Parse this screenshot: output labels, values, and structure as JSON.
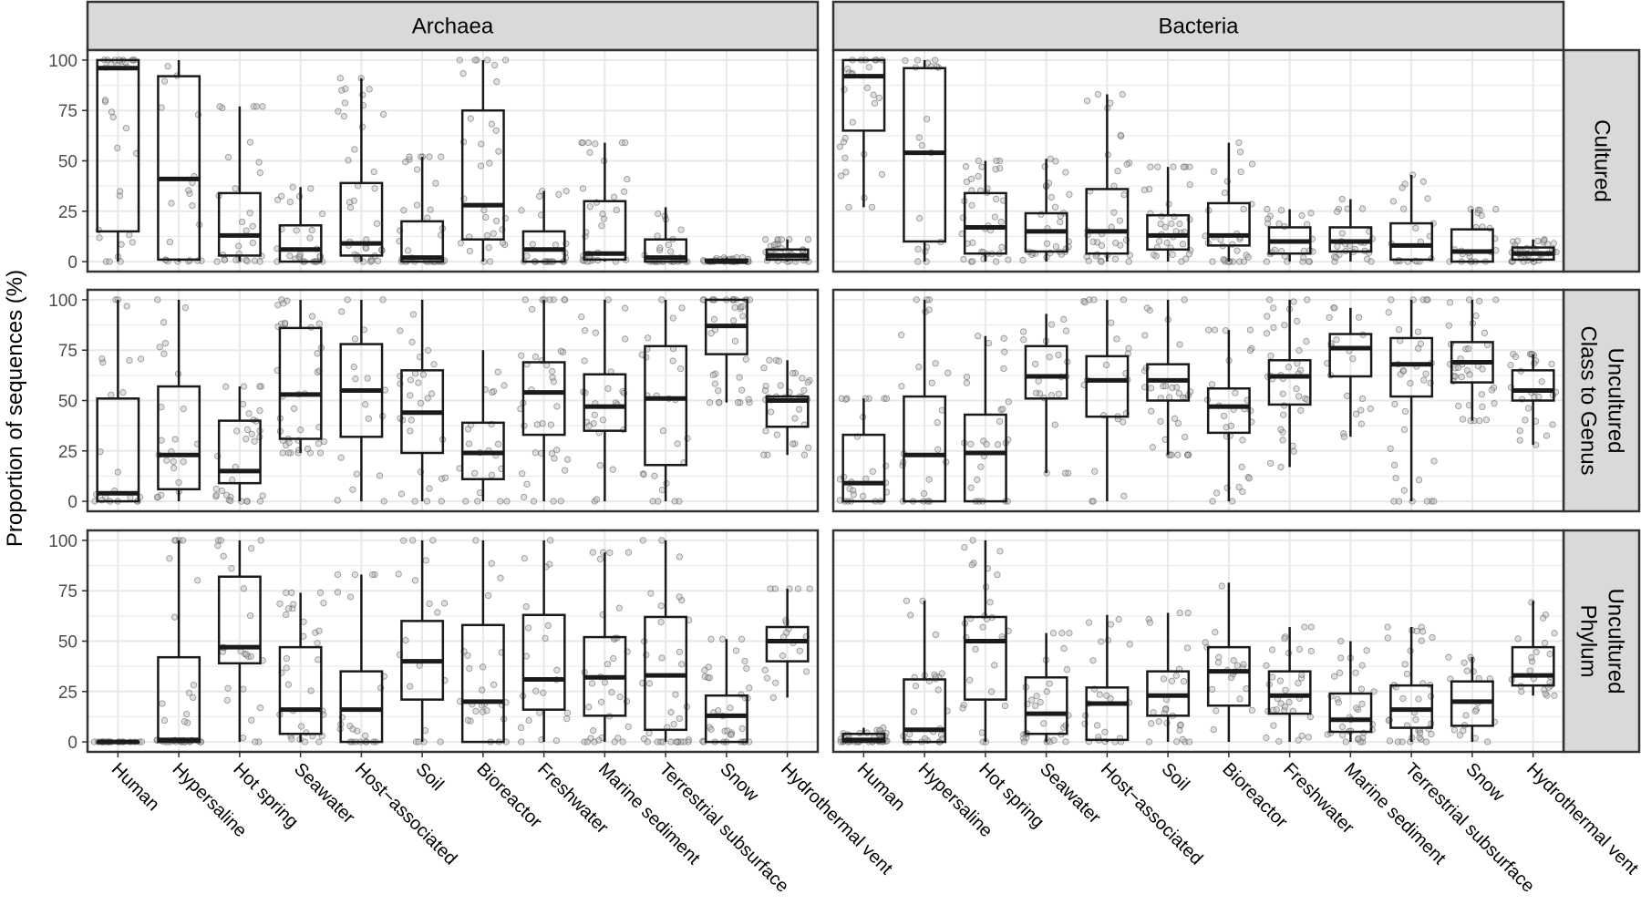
{
  "chart_data": {
    "type": "boxplot",
    "ylabel": "Proportion of sequences (%)",
    "ylim": [
      0,
      100
    ],
    "yticks": [
      0,
      25,
      50,
      75,
      100
    ],
    "grid": true,
    "facet_columns": [
      "Archaea",
      "Bacteria"
    ],
    "facet_rows": [
      "Cultured",
      "Uncultured\nClass to Genus",
      "Uncultured\nPhylum"
    ],
    "categories": [
      "Human",
      "Hypersaline",
      "Hot spring",
      "Seawater",
      "Host−associated",
      "Soil",
      "Bioreactor",
      "Freshwater",
      "Marine sediment",
      "Terrestrial subsurface",
      "Snow",
      "Hydrothermal vent"
    ],
    "panels": [
      {
        "column": "Archaea",
        "row": "Cultured",
        "boxes": [
          {
            "lo": 0,
            "q1": 15,
            "med": 96,
            "q3": 100,
            "hi": 100
          },
          {
            "lo": 0,
            "q1": 1,
            "med": 41,
            "q3": 92,
            "hi": 100
          },
          {
            "lo": 0,
            "q1": 3,
            "med": 13,
            "q3": 34,
            "hi": 77
          },
          {
            "lo": 0,
            "q1": 0,
            "med": 6,
            "q3": 18,
            "hi": 37
          },
          {
            "lo": 0,
            "q1": 3,
            "med": 9,
            "q3": 39,
            "hi": 91
          },
          {
            "lo": 0,
            "q1": 0,
            "med": 2,
            "q3": 20,
            "hi": 52
          },
          {
            "lo": 0,
            "q1": 11,
            "med": 28,
            "q3": 75,
            "hi": 100
          },
          {
            "lo": 0,
            "q1": 0,
            "med": 6,
            "q3": 15,
            "hi": 35
          },
          {
            "lo": 0,
            "q1": 1,
            "med": 4,
            "q3": 30,
            "hi": 59
          },
          {
            "lo": 0,
            "q1": 0,
            "med": 2,
            "q3": 11,
            "hi": 27
          },
          {
            "lo": 0,
            "q1": 0,
            "med": 0,
            "q3": 1,
            "hi": 2
          },
          {
            "lo": 0,
            "q1": 1,
            "med": 3,
            "q3": 6,
            "hi": 11
          }
        ]
      },
      {
        "column": "Bacteria",
        "row": "Cultured",
        "boxes": [
          {
            "lo": 27,
            "q1": 65,
            "med": 92,
            "q3": 100,
            "hi": 100
          },
          {
            "lo": 0,
            "q1": 10,
            "med": 54,
            "q3": 96,
            "hi": 100
          },
          {
            "lo": 0,
            "q1": 4,
            "med": 17,
            "q3": 34,
            "hi": 50
          },
          {
            "lo": 0,
            "q1": 5,
            "med": 15,
            "q3": 24,
            "hi": 51
          },
          {
            "lo": 0,
            "q1": 4,
            "med": 15,
            "q3": 36,
            "hi": 83
          },
          {
            "lo": 0,
            "q1": 6,
            "med": 13,
            "q3": 23,
            "hi": 47
          },
          {
            "lo": 0,
            "q1": 8,
            "med": 13,
            "q3": 29,
            "hi": 59
          },
          {
            "lo": 0,
            "q1": 4,
            "med": 10,
            "q3": 17,
            "hi": 26
          },
          {
            "lo": 0,
            "q1": 5,
            "med": 10,
            "q3": 17,
            "hi": 31
          },
          {
            "lo": 0,
            "q1": 1,
            "med": 8,
            "q3": 19,
            "hi": 43
          },
          {
            "lo": 0,
            "q1": 0,
            "med": 5,
            "q3": 16,
            "hi": 26
          },
          {
            "lo": 0,
            "q1": 1,
            "med": 4,
            "q3": 7,
            "hi": 11
          }
        ]
      },
      {
        "column": "Archaea",
        "row": "Uncultured\nClass to Genus",
        "boxes": [
          {
            "lo": 0,
            "q1": 0,
            "med": 4,
            "q3": 51,
            "hi": 100
          },
          {
            "lo": 0,
            "q1": 6,
            "med": 23,
            "q3": 57,
            "hi": 100
          },
          {
            "lo": 0,
            "q1": 9,
            "med": 15,
            "q3": 40,
            "hi": 57
          },
          {
            "lo": 24,
            "q1": 31,
            "med": 53,
            "q3": 86,
            "hi": 100
          },
          {
            "lo": 0,
            "q1": 32,
            "med": 55,
            "q3": 78,
            "hi": 100
          },
          {
            "lo": 0,
            "q1": 24,
            "med": 44,
            "q3": 65,
            "hi": 100
          },
          {
            "lo": 0,
            "q1": 11,
            "med": 24,
            "q3": 39,
            "hi": 75
          },
          {
            "lo": 0,
            "q1": 33,
            "med": 54,
            "q3": 69,
            "hi": 100
          },
          {
            "lo": 0,
            "q1": 35,
            "med": 47,
            "q3": 63,
            "hi": 100
          },
          {
            "lo": 0,
            "q1": 18,
            "med": 51,
            "q3": 77,
            "hi": 100
          },
          {
            "lo": 49,
            "q1": 73,
            "med": 87,
            "q3": 100,
            "hi": 100
          },
          {
            "lo": 23,
            "q1": 37,
            "med": 50,
            "q3": 52,
            "hi": 70
          }
        ]
      },
      {
        "column": "Bacteria",
        "row": "Uncultured\nClass to Genus",
        "boxes": [
          {
            "lo": 0,
            "q1": 0,
            "med": 9,
            "q3": 33,
            "hi": 51
          },
          {
            "lo": 0,
            "q1": 0,
            "med": 23,
            "q3": 52,
            "hi": 100
          },
          {
            "lo": 0,
            "q1": 0,
            "med": 24,
            "q3": 43,
            "hi": 82
          },
          {
            "lo": 14,
            "q1": 51,
            "med": 62,
            "q3": 77,
            "hi": 93
          },
          {
            "lo": 0,
            "q1": 42,
            "med": 60,
            "q3": 72,
            "hi": 100
          },
          {
            "lo": 23,
            "q1": 50,
            "med": 60,
            "q3": 68,
            "hi": 100
          },
          {
            "lo": 0,
            "q1": 34,
            "med": 47,
            "q3": 56,
            "hi": 85
          },
          {
            "lo": 17,
            "q1": 48,
            "med": 62,
            "q3": 70,
            "hi": 100
          },
          {
            "lo": 32,
            "q1": 62,
            "med": 76,
            "q3": 83,
            "hi": 96
          },
          {
            "lo": 0,
            "q1": 52,
            "med": 68,
            "q3": 81,
            "hi": 100
          },
          {
            "lo": 40,
            "q1": 59,
            "med": 69,
            "q3": 79,
            "hi": 100
          },
          {
            "lo": 28,
            "q1": 50,
            "med": 55,
            "q3": 65,
            "hi": 73
          }
        ]
      },
      {
        "column": "Archaea",
        "row": "Uncultured\nPhylum",
        "boxes": [
          {
            "lo": 0,
            "q1": 0,
            "med": 0,
            "q3": 0,
            "hi": 0
          },
          {
            "lo": 0,
            "q1": 0,
            "med": 1,
            "q3": 42,
            "hi": 100
          },
          {
            "lo": 0,
            "q1": 39,
            "med": 47,
            "q3": 82,
            "hi": 100
          },
          {
            "lo": 0,
            "q1": 4,
            "med": 16,
            "q3": 47,
            "hi": 74
          },
          {
            "lo": 0,
            "q1": 0,
            "med": 16,
            "q3": 35,
            "hi": 83
          },
          {
            "lo": 0,
            "q1": 21,
            "med": 40,
            "q3": 60,
            "hi": 100
          },
          {
            "lo": 0,
            "q1": 0,
            "med": 20,
            "q3": 58,
            "hi": 100
          },
          {
            "lo": 0,
            "q1": 16,
            "med": 31,
            "q3": 63,
            "hi": 100
          },
          {
            "lo": 0,
            "q1": 13,
            "med": 32,
            "q3": 52,
            "hi": 94
          },
          {
            "lo": 0,
            "q1": 6,
            "med": 33,
            "q3": 62,
            "hi": 100
          },
          {
            "lo": 0,
            "q1": 0,
            "med": 13,
            "q3": 23,
            "hi": 51
          },
          {
            "lo": 22,
            "q1": 40,
            "med": 50,
            "q3": 57,
            "hi": 76
          }
        ]
      },
      {
        "column": "Bacteria",
        "row": "Uncultured\nPhylum",
        "boxes": [
          {
            "lo": 0,
            "q1": 0,
            "med": 1,
            "q3": 4,
            "hi": 7
          },
          {
            "lo": 0,
            "q1": 0,
            "med": 6,
            "q3": 31,
            "hi": 70
          },
          {
            "lo": 0,
            "q1": 21,
            "med": 50,
            "q3": 62,
            "hi": 100
          },
          {
            "lo": 0,
            "q1": 4,
            "med": 14,
            "q3": 32,
            "hi": 54
          },
          {
            "lo": 0,
            "q1": 1,
            "med": 19,
            "q3": 27,
            "hi": 63
          },
          {
            "lo": 0,
            "q1": 13,
            "med": 23,
            "q3": 35,
            "hi": 64
          },
          {
            "lo": 0,
            "q1": 18,
            "med": 35,
            "q3": 47,
            "hi": 79
          },
          {
            "lo": 0,
            "q1": 14,
            "med": 23,
            "q3": 35,
            "hi": 57
          },
          {
            "lo": 0,
            "q1": 5,
            "med": 11,
            "q3": 24,
            "hi": 50
          },
          {
            "lo": 0,
            "q1": 7,
            "med": 16,
            "q3": 28,
            "hi": 57
          },
          {
            "lo": 0,
            "q1": 8,
            "med": 20,
            "q3": 30,
            "hi": 42
          },
          {
            "lo": 23,
            "q1": 28,
            "med": 33,
            "q3": 47,
            "hi": 70
          }
        ]
      }
    ]
  },
  "colors": {
    "strip_fill": "#d9d9d9",
    "panel_border": "#333333",
    "grid": "#e8e8e8",
    "box_stroke": "#1a1a1a",
    "point_fill": "#b8b8b8",
    "point_stroke": "#555555"
  }
}
